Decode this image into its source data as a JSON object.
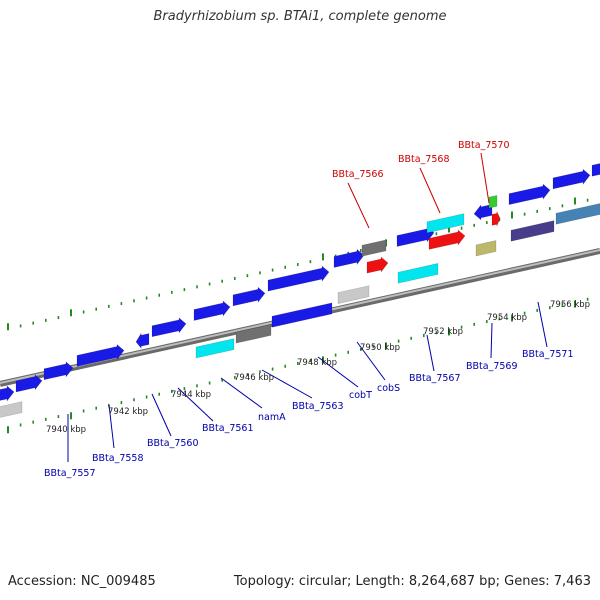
{
  "header": {
    "title": "Bradyrhizobium sp. BTAi1, complete genome"
  },
  "footer": {
    "accession": "Accession: NC_009485",
    "topology": "Topology: circular; Length: 8,264,687 bp; Genes: 7,463"
  },
  "colors": {
    "backbone": "#8c8c8c",
    "tick": "#228b22",
    "label_blue": "#0000aa",
    "label_red": "#cc0000",
    "gene_blue": "#1a1ae6",
    "gene_cyan": "#00e5ee",
    "gene_gray": "#707070",
    "gene_lightgray": "#c8c8c8",
    "gene_red": "#ee1111",
    "gene_green": "#33cc33",
    "gene_khaki": "#bdb76b",
    "gene_slate": "#483d8b",
    "gene_steelblue": "#4682b4"
  },
  "scale_labels": [
    "7940 kbp",
    "7942 kbp",
    "7944 kbp",
    "7946 kbp",
    "7948 kbp",
    "7950 kbp",
    "7952 kbp",
    "7954 kbp",
    "7956 kbp"
  ],
  "gene_labels_blue": [
    "BBta_7557",
    "BBta_7558",
    "BBta_7560",
    "BBta_7561",
    "namA",
    "BBta_7563",
    "cobT",
    "cobS",
    "BBta_7567",
    "BBta_7569",
    "BBta_7571"
  ],
  "gene_labels_red": [
    "BBta_7566",
    "BBta_7568",
    "BBta_7570"
  ]
}
